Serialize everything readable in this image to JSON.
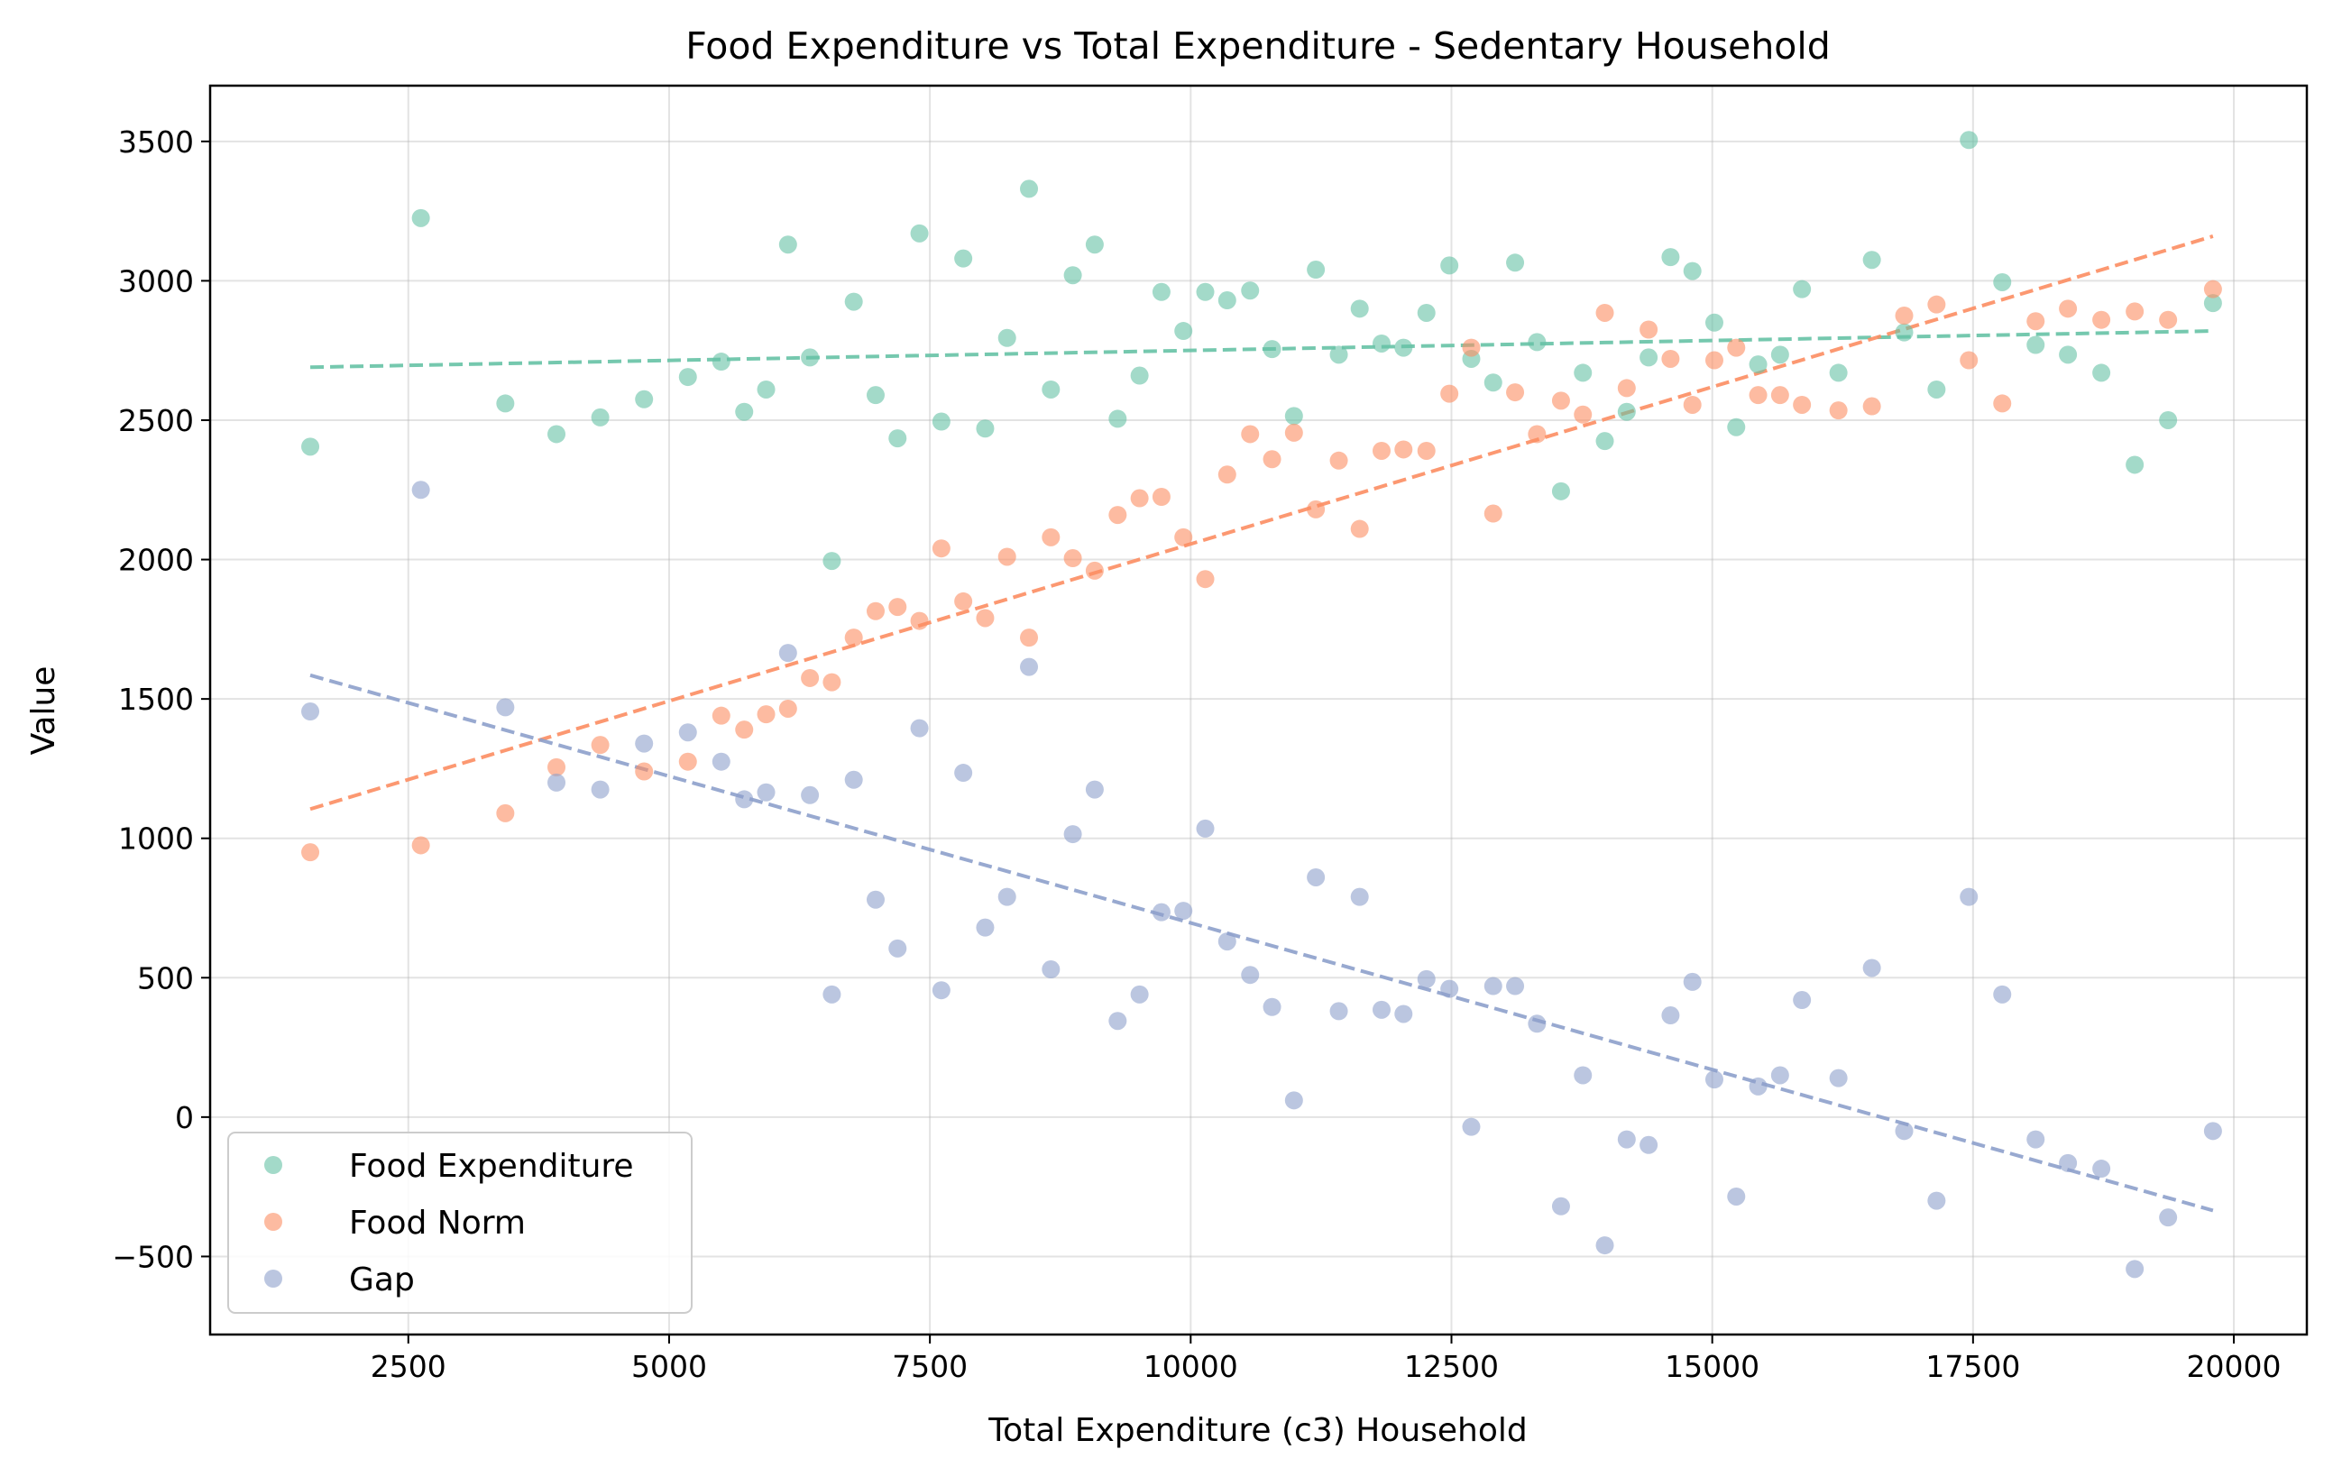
{
  "chart_data": {
    "type": "scatter",
    "title": "Food Expenditure vs Total Expenditure - Sedentary Household",
    "xlabel": "Total Expenditure (c3) Household",
    "ylabel": "Value",
    "xlim": [
      600,
      20700
    ],
    "ylim": [
      -780,
      3700
    ],
    "x_ticks": [
      2500,
      5000,
      7500,
      10000,
      12500,
      15000,
      17500,
      20000
    ],
    "y_ticks": [
      -500,
      0,
      500,
      1000,
      1500,
      2000,
      2500,
      3000,
      3500
    ],
    "grid": true,
    "legend_position": "lower-left",
    "colors": {
      "food_expenditure": "#66c2a5",
      "food_norm": "#fc8d62",
      "gap": "#8da0cb"
    },
    "x": [
      1560,
      2620,
      3430,
      3920,
      4340,
      4760,
      5180,
      5500,
      5720,
      5930,
      6140,
      6350,
      6560,
      6770,
      6980,
      7190,
      7400,
      7610,
      7820,
      8030,
      8240,
      8450,
      8660,
      8870,
      9080,
      9300,
      9510,
      9720,
      9930,
      10140,
      10350,
      10570,
      10780,
      10990,
      11200,
      11420,
      11620,
      11830,
      12040,
      12260,
      12480,
      12690,
      12900,
      13110,
      13320,
      13550,
      13760,
      13970,
      14180,
      14390,
      14600,
      14810,
      15020,
      15230,
      15440,
      15650,
      15860,
      16210,
      16530,
      16840,
      17150,
      17460,
      17780,
      18100,
      18410,
      18730,
      19050,
      19370,
      19800
    ],
    "series": [
      {
        "name": "Food Expenditure",
        "values": [
          2405,
          3225,
          2560,
          2450,
          2510,
          2575,
          2655,
          2710,
          2530,
          2610,
          3130,
          2725,
          1995,
          2925,
          2590,
          2435,
          3170,
          2495,
          3080,
          2470,
          2795,
          3330,
          2610,
          3020,
          3130,
          2505,
          2660,
          2960,
          2820,
          2960,
          2930,
          2965,
          2755,
          2515,
          3040,
          2735,
          2900,
          2775,
          2760,
          2885,
          3055,
          2720,
          2635,
          3065,
          2780,
          2245,
          2670,
          2425,
          2530,
          2725,
          3085,
          3035,
          2850,
          2475,
          2700,
          2735,
          2970,
          2670,
          3075,
          2815,
          2610,
          3505,
          2995,
          2770,
          2735,
          2670,
          2340,
          2500,
          2920
        ],
        "trend": [
          2690,
          2820
        ]
      },
      {
        "name": "Food Norm",
        "values": [
          950,
          975,
          1090,
          1255,
          1335,
          1240,
          1275,
          1440,
          1390,
          1445,
          1465,
          1575,
          1560,
          1720,
          1815,
          1830,
          1780,
          2040,
          1850,
          1790,
          2010,
          1720,
          2080,
          2005,
          1960,
          2160,
          2220,
          2225,
          2080,
          1930,
          2305,
          2450,
          2360,
          2455,
          2180,
          2355,
          2110,
          2390,
          2395,
          2390,
          2595,
          2760,
          2165,
          2600,
          2450,
          2570,
          2520,
          2885,
          2615,
          2825,
          2720,
          2555,
          2715,
          2760,
          2590,
          2590,
          2555,
          2535,
          2550,
          2875,
          2915,
          2715,
          2560,
          2855,
          2900,
          2860,
          2890,
          2860,
          2970
        ],
        "trend": [
          1105,
          3160
        ]
      },
      {
        "name": "Gap",
        "values": [
          1455,
          2250,
          1470,
          1200,
          1175,
          1340,
          1380,
          1275,
          1140,
          1165,
          1665,
          1155,
          440,
          1210,
          780,
          605,
          1395,
          455,
          1235,
          680,
          790,
          1615,
          530,
          1015,
          1175,
          345,
          440,
          735,
          740,
          1035,
          630,
          510,
          395,
          60,
          860,
          380,
          790,
          385,
          370,
          495,
          460,
          -35,
          470,
          470,
          335,
          -320,
          150,
          -460,
          -80,
          -100,
          365,
          485,
          135,
          -285,
          110,
          150,
          420,
          140,
          535,
          -50,
          -300,
          790,
          440,
          -80,
          -165,
          -185,
          -545,
          -360,
          -50
        ],
        "trend": [
          1585,
          -335
        ]
      }
    ]
  }
}
